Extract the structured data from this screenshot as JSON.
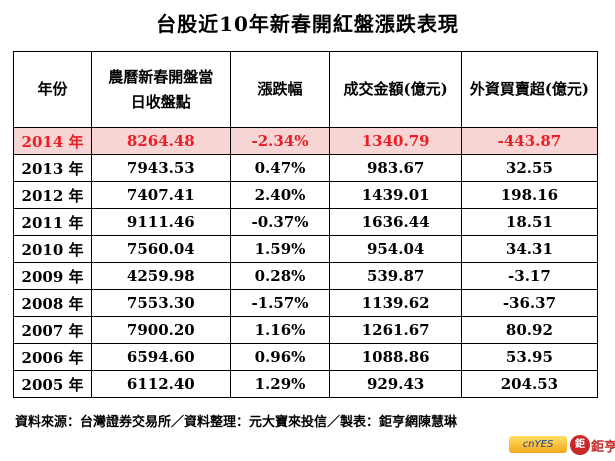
{
  "title": "台股近10年新春開紅盤漲跌表現",
  "table": {
    "headers": [
      "年份",
      "農曆新春開盤當日收盤點",
      "漲跌幅",
      "成交金額(億元)",
      "外資買賣超(億元)"
    ],
    "rows": [
      [
        "2014 年",
        "8264.48",
        "-2.34%",
        "1340.79",
        "-443.87"
      ],
      [
        "2013 年",
        "7943.53",
        "0.47%",
        "983.67",
        "32.55"
      ],
      [
        "2012 年",
        "7407.41",
        "2.40%",
        "1439.01",
        "198.16"
      ],
      [
        "2011 年",
        "9111.46",
        "-0.37%",
        "1636.44",
        "18.51"
      ],
      [
        "2010 年",
        "7560.04",
        "1.59%",
        "954.04",
        "34.31"
      ],
      [
        "2009 年",
        "4259.98",
        "0.28%",
        "539.87",
        "-3.17"
      ],
      [
        "2008 年",
        "7553.30",
        "-1.57%",
        "1139.62",
        "-36.37"
      ],
      [
        "2007 年",
        "7900.20",
        "1.16%",
        "1261.67",
        "80.92"
      ],
      [
        "2006 年",
        "6594.60",
        "0.96%",
        "1088.86",
        "53.95"
      ],
      [
        "2005 年",
        "6112.40",
        "1.29%",
        "929.43",
        "204.53"
      ]
    ]
  },
  "footer": "資料來源：台灣證券交易所／資料整理：元大寶來投信／製表：鉅亨網陳慧琳",
  "logo": {
    "left": "cnYES",
    "mark": "鉅",
    "text": "鉅亨網"
  },
  "colors": {
    "highlight_bg": "#f7d5d5",
    "highlight_text": "#ee1c25"
  }
}
